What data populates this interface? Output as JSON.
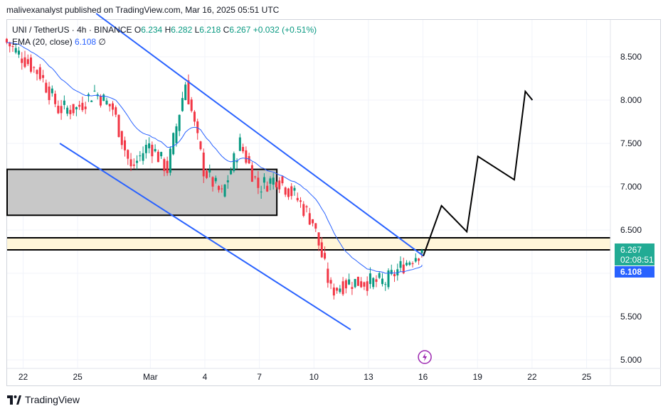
{
  "header": {
    "publisher_line": "malivexanalyst published on TradingView.com, Mar 16, 2025 05:51 UTC"
  },
  "legend": {
    "symbol": "UNI / TetherUS · 4h · BINANCE",
    "open_label": "O",
    "open": "6.234",
    "high_label": "H",
    "high": "6.282",
    "low_label": "L",
    "low": "6.218",
    "close_label": "C",
    "close": "6.267",
    "change": "+0.032 (+0.51%)",
    "ema_label": "EMA (20, close)",
    "ema_value": "6.108",
    "ema_extra": "∅"
  },
  "price_tags": {
    "last_price": "6.267",
    "countdown": "02:08:51",
    "ema": "6.108"
  },
  "footer": {
    "brand": "TradingView"
  },
  "colors": {
    "up": "#089981",
    "down": "#f23645",
    "ema": "#2962ff",
    "channel": "#2962ff",
    "zone_grey": "#c8c8c8",
    "zone_yellow": "#fff6d9",
    "projection": "#000000",
    "price_tag": "#22ab94",
    "event_icon": "#9c27b0"
  },
  "chart_data": {
    "type": "candlestick",
    "symbol": "UNI / TetherUS",
    "interval": "4h",
    "exchange": "BINANCE",
    "y_ticks": [
      "8.500",
      "8.000",
      "7.500",
      "7.000",
      "6.500",
      "6.000",
      "5.500",
      "5.000"
    ],
    "y_range": [
      4.9,
      8.9
    ],
    "x_ticks": [
      "22",
      "25",
      "Mar",
      "4",
      "7",
      "10",
      "13",
      "16",
      "19",
      "22",
      "25"
    ],
    "x_range_days": [
      "Feb 20",
      "Mar 27"
    ],
    "grid": true,
    "close_series_daily": [
      {
        "date": "Feb 21",
        "close": 8.7
      },
      {
        "date": "Feb 22",
        "close": 8.5
      },
      {
        "date": "Feb 23",
        "close": 8.3
      },
      {
        "date": "Feb 24",
        "close": 7.9
      },
      {
        "date": "Feb 25",
        "close": 7.9
      },
      {
        "date": "Feb 26",
        "close": 8.1
      },
      {
        "date": "Feb 27",
        "close": 7.9
      },
      {
        "date": "Feb 28",
        "close": 7.2
      },
      {
        "date": "Mar 1",
        "close": 7.5
      },
      {
        "date": "Mar 2",
        "close": 7.2
      },
      {
        "date": "Mar 3",
        "close": 8.2
      },
      {
        "date": "Mar 4",
        "close": 7.2
      },
      {
        "date": "Mar 5",
        "close": 6.9
      },
      {
        "date": "Mar 6",
        "close": 7.5
      },
      {
        "date": "Mar 7",
        "close": 7.0
      },
      {
        "date": "Mar 8",
        "close": 7.1
      },
      {
        "date": "Mar 9",
        "close": 6.9
      },
      {
        "date": "Mar 10",
        "close": 6.6
      },
      {
        "date": "Mar 11",
        "close": 5.8
      },
      {
        "date": "Mar 12",
        "close": 5.9
      },
      {
        "date": "Mar 13",
        "close": 5.9
      },
      {
        "date": "Mar 14",
        "close": 5.9
      },
      {
        "date": "Mar 15",
        "close": 6.1
      },
      {
        "date": "Mar 16",
        "close": 6.267
      }
    ],
    "ema_20": 6.108,
    "annotations": {
      "descending_channel_upper": [
        {
          "date": "Feb 26",
          "price": 9.0
        },
        {
          "date": "Mar 16",
          "price": 6.2
        }
      ],
      "descending_channel_lower": [
        {
          "date": "Feb 24",
          "price": 7.5
        },
        {
          "date": "Mar 12",
          "price": 5.35
        }
      ],
      "grey_zone": {
        "from": "Feb 20",
        "to": "Mar 7",
        "low": 6.67,
        "high": 7.2
      },
      "yellow_zone": {
        "from": "Feb 20",
        "to": "Mar 27",
        "low": 6.27,
        "high": 6.41
      },
      "projection_path": [
        {
          "date": "Mar 16",
          "price": 6.2
        },
        {
          "date": "Mar 17",
          "price": 6.78
        },
        {
          "date": "Mar 18",
          "price": 6.48
        },
        {
          "date": "Mar 19",
          "price": 7.35
        },
        {
          "date": "Mar 21",
          "price": 7.08
        },
        {
          "date": "Mar 22",
          "price": 8.1
        },
        {
          "date": "Mar 22",
          "price": 8.0
        }
      ]
    }
  }
}
